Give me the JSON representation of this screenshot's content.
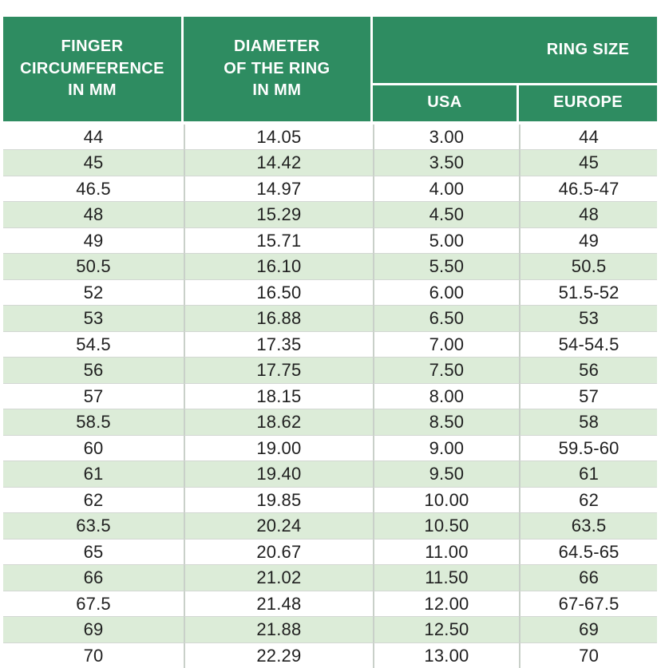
{
  "colors": {
    "header_green": "#2e8c61",
    "row_alt_green": "#dcecd8",
    "header_text": "#ffffff",
    "body_text": "#1f1f1f",
    "divider_gray": "#c9d0c9",
    "row_line_gray": "#d3d7d3",
    "page_background": "#ffffff"
  },
  "table": {
    "header": {
      "finger_circumference": "FINGER\nCIRCUMFERENCE\nIN MM",
      "ring_diameter": "DIAMETER\nOF THE RING\nIN MM",
      "ring_size": "RING SIZE",
      "usa": "USA",
      "europe": "EUROPE"
    },
    "rows": [
      [
        "44",
        "14.05",
        "3.00",
        "44"
      ],
      [
        "45",
        "14.42",
        "3.50",
        "45"
      ],
      [
        "46.5",
        "14.97",
        "4.00",
        "46.5-47"
      ],
      [
        "48",
        "15.29",
        "4.50",
        "48"
      ],
      [
        "49",
        "15.71",
        "5.00",
        "49"
      ],
      [
        "50.5",
        "16.10",
        "5.50",
        "50.5"
      ],
      [
        "52",
        "16.50",
        "6.00",
        "51.5-52"
      ],
      [
        "53",
        "16.88",
        "6.50",
        "53"
      ],
      [
        "54.5",
        "17.35",
        "7.00",
        "54-54.5"
      ],
      [
        "56",
        "17.75",
        "7.50",
        "56"
      ],
      [
        "57",
        "18.15",
        "8.00",
        "57"
      ],
      [
        "58.5",
        "18.62",
        "8.50",
        "58"
      ],
      [
        "60",
        "19.00",
        "9.00",
        "59.5-60"
      ],
      [
        "61",
        "19.40",
        "9.50",
        "61"
      ],
      [
        "62",
        "19.85",
        "10.00",
        "62"
      ],
      [
        "63.5",
        "20.24",
        "10.50",
        "63.5"
      ],
      [
        "65",
        "20.67",
        "11.00",
        "64.5-65"
      ],
      [
        "66",
        "21.02",
        "11.50",
        "66"
      ],
      [
        "67.5",
        "21.48",
        "12.00",
        "67-67.5"
      ],
      [
        "69",
        "21.88",
        "12.50",
        "69"
      ],
      [
        "70",
        "22.29",
        "13.00",
        "70"
      ]
    ]
  }
}
